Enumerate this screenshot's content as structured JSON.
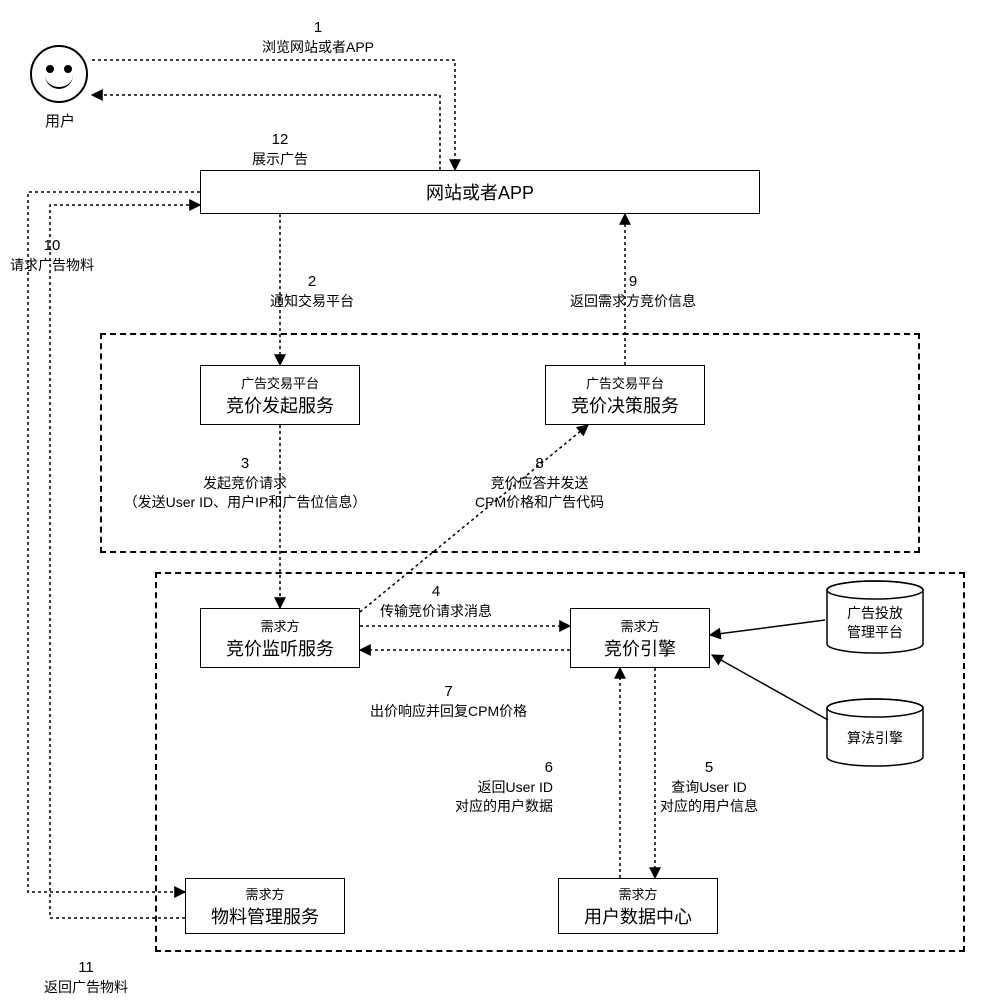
{
  "type": "flowchart",
  "colors": {
    "stroke": "#000000",
    "bg": "#ffffff",
    "text": "#000000"
  },
  "line_style": "dotted",
  "user": {
    "label": "用户"
  },
  "nodes": {
    "website": {
      "label": "网站或者APP"
    },
    "bid_init": {
      "sub": "广告交易平台",
      "title": "竞价发起服务"
    },
    "bid_decision": {
      "sub": "广告交易平台",
      "title": "竞价决策服务"
    },
    "bid_listen": {
      "sub": "需求方",
      "title": "竞价监听服务"
    },
    "bid_engine": {
      "sub": "需求方",
      "title": "竞价引擎"
    },
    "material": {
      "sub": "需求方",
      "title": "物料管理服务"
    },
    "user_center": {
      "sub": "需求方",
      "title": "用户数据中心"
    },
    "ad_mgmt": {
      "label": "广告投放\n管理平台"
    },
    "algo": {
      "label": "算法引擎"
    }
  },
  "edges": {
    "e1": {
      "num": "1",
      "label": "浏览网站或者APP"
    },
    "e2": {
      "num": "2",
      "label": "通知交易平台"
    },
    "e3": {
      "num": "3",
      "label": "发起竞价请求",
      "label2": "（发送User ID、用户IP和广告位信息）"
    },
    "e4": {
      "num": "4",
      "label": "传输竞价请求消息"
    },
    "e5": {
      "num": "5",
      "label": "查询User ID",
      "label2": "对应的用户信息"
    },
    "e6": {
      "num": "6",
      "label": "返回User ID",
      "label2": "对应的用户数据"
    },
    "e7": {
      "num": "7",
      "label": "出价响应并回复CPM价格"
    },
    "e8": {
      "num": "8",
      "label": "竞价应答并发送",
      "label2": "CPM价格和广告代码"
    },
    "e9": {
      "num": "9",
      "label": "返回需求方竞价信息"
    },
    "e10": {
      "num": "10",
      "label": "请求广告物料"
    },
    "e11": {
      "num": "11",
      "label": "返回广告物料"
    },
    "e12": {
      "num": "12",
      "label": "展示广告"
    }
  }
}
